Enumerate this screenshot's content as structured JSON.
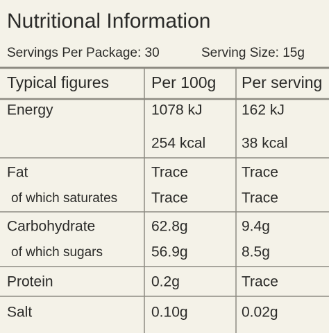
{
  "header": {
    "title": "Nutritional Information",
    "servings": "Servings Per Package: 30",
    "serving_size": "Serving Size: 15g"
  },
  "table": {
    "columns": [
      "Typical figures",
      "Per 100g",
      "Per serving"
    ],
    "groups": [
      {
        "rows": [
          {
            "label": "Energy",
            "per_100g": "1078 kJ",
            "per_serving": "162 kJ"
          },
          {
            "per_100g": "254 kcal",
            "per_serving": "38 kcal"
          }
        ]
      },
      {
        "rows": [
          {
            "label": "Fat",
            "per_100g": "Trace",
            "per_serving": "Trace"
          },
          {
            "label": "of which saturates",
            "per_100g": "Trace",
            "per_serving": "Trace"
          }
        ]
      },
      {
        "rows": [
          {
            "label": "Carbohydrate",
            "per_100g": "62.8g",
            "per_serving": "9.4g"
          },
          {
            "label": "of which sugars",
            "per_100g": "56.9g",
            "per_serving": "8.5g"
          }
        ]
      },
      {
        "rows": [
          {
            "label": "Protein",
            "per_100g": "0.2g",
            "per_serving": "Trace"
          }
        ]
      },
      {
        "rows": [
          {
            "label": "Salt",
            "per_100g": "0.10g",
            "per_serving": "0.02g"
          }
        ]
      }
    ]
  }
}
